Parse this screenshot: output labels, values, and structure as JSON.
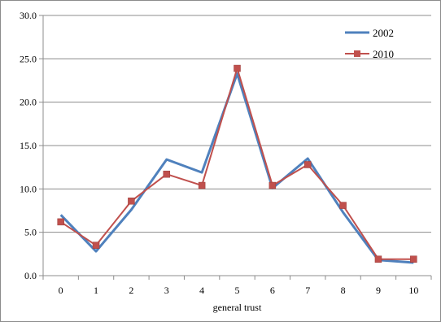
{
  "chart_data": {
    "type": "line",
    "title": "",
    "xlabel": "general trust",
    "ylabel": "",
    "categories": [
      "0",
      "1",
      "2",
      "3",
      "4",
      "5",
      "6",
      "7",
      "8",
      "9",
      "10"
    ],
    "ylim": [
      0,
      30
    ],
    "yticks": [
      "0.0",
      "5.0",
      "10.0",
      "15.0",
      "20.0",
      "25.0",
      "30.0"
    ],
    "grid": true,
    "legend_position": "top-right",
    "series": [
      {
        "name": "2002",
        "color": "#4F81BD",
        "marker": "none",
        "values": [
          7.0,
          2.8,
          7.6,
          13.4,
          11.9,
          23.3,
          10.1,
          13.5,
          7.3,
          1.8,
          1.5
        ]
      },
      {
        "name": "2010",
        "color": "#C0504D",
        "marker": "square",
        "values": [
          6.2,
          3.5,
          8.6,
          11.7,
          10.4,
          23.9,
          10.4,
          12.8,
          8.1,
          1.9,
          1.9
        ]
      }
    ]
  }
}
